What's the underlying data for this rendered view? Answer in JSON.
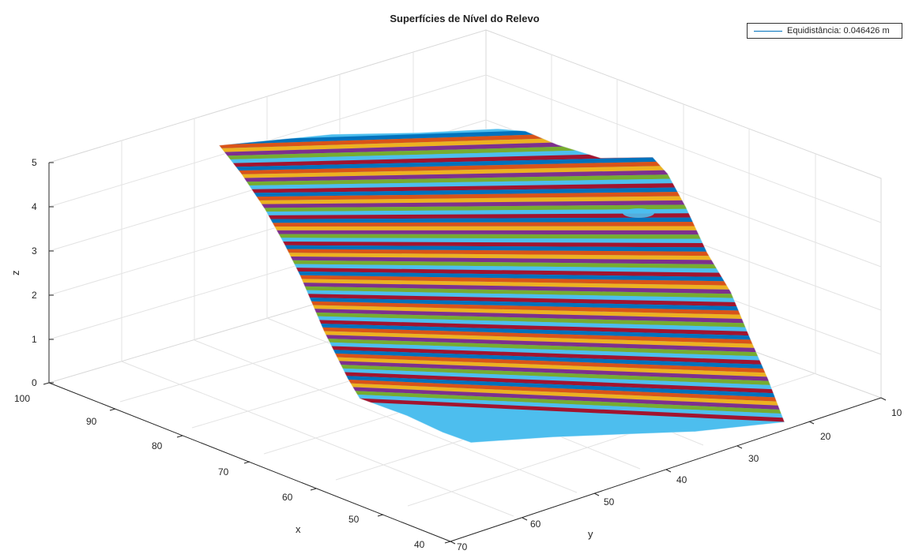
{
  "chart_data": {
    "type": "surface",
    "title": "Superfícies de Nível do Relevo",
    "xlabel": "x",
    "ylabel": "y",
    "zlabel": "z",
    "x_ticks": [
      100,
      90,
      80,
      70,
      60,
      50,
      40
    ],
    "y_ticks": [
      10,
      20,
      30,
      40,
      50,
      60,
      70
    ],
    "z_ticks": [
      0,
      1,
      2,
      3,
      4,
      5
    ],
    "xlim": [
      40,
      100
    ],
    "ylim": [
      10,
      70
    ],
    "zlim": [
      0,
      5
    ],
    "grid": true,
    "legend_position": "top-right",
    "series": [
      {
        "name": "Equidistância: 0.046426 m",
        "color": "#0072bd"
      }
    ],
    "level_colors": [
      "#0072bd",
      "#d95319",
      "#edb120",
      "#7e2f8e",
      "#77ac30",
      "#4dbeee",
      "#a2142f"
    ]
  }
}
